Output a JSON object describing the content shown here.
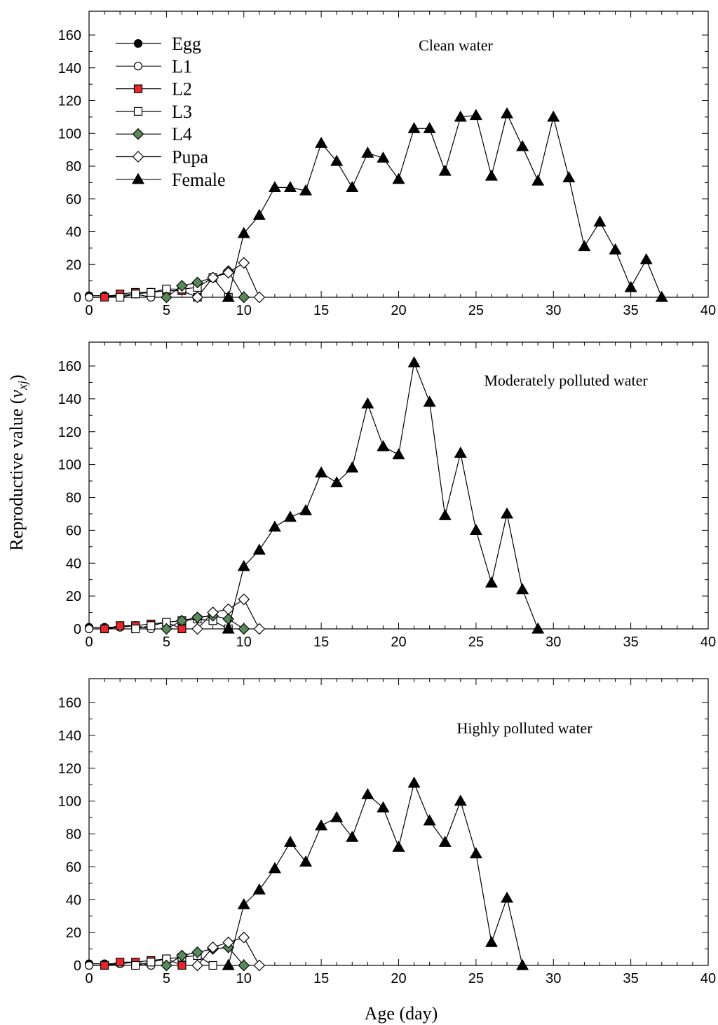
{
  "figure": {
    "ylabel_main": "Reproductive value (",
    "ylabel_var": "v",
    "ylabel_sub": "xj",
    "ylabel_close": ")",
    "xlabel": "Age (day)"
  },
  "series_styles": [
    {
      "name": "Egg",
      "marker": "circle",
      "fill": "#000000"
    },
    {
      "name": "L1",
      "marker": "circle",
      "fill": "#ffffff"
    },
    {
      "name": "L2",
      "marker": "square",
      "fill": "#e8262b"
    },
    {
      "name": "L3",
      "marker": "square",
      "fill": "#ffffff"
    },
    {
      "name": "L4",
      "marker": "diamond",
      "fill": "#5a8a5c"
    },
    {
      "name": "Pupa",
      "marker": "diamond",
      "fill": "#ffffff"
    },
    {
      "name": "Female",
      "marker": "triangle",
      "fill": "#000000"
    }
  ],
  "chart_data": [
    {
      "type": "line",
      "title": "Clean water",
      "xlim": [
        0,
        40
      ],
      "ylim": [
        0,
        160
      ],
      "xticks": [
        0,
        5,
        10,
        15,
        20,
        25,
        30,
        35,
        40
      ],
      "yticks": [
        0,
        20,
        40,
        60,
        80,
        100,
        120,
        140,
        160
      ],
      "legend": "top-left",
      "series": [
        {
          "name": "Egg",
          "x": [
            0,
            1,
            2,
            3
          ],
          "y": [
            1,
            1,
            1,
            2
          ]
        },
        {
          "name": "L1",
          "x": [
            0,
            1,
            2,
            3,
            4
          ],
          "y": [
            0,
            0,
            1,
            2,
            0
          ]
        },
        {
          "name": "L2",
          "x": [
            1,
            2,
            3,
            4,
            5,
            6,
            7
          ],
          "y": [
            0,
            2,
            3,
            3,
            4,
            4,
            0
          ]
        },
        {
          "name": "L3",
          "x": [
            2,
            3,
            4,
            5,
            6,
            7,
            8,
            9
          ],
          "y": [
            0,
            2,
            3,
            5,
            5,
            6,
            12,
            0
          ]
        },
        {
          "name": "L4",
          "x": [
            5,
            6,
            7,
            8,
            9,
            10
          ],
          "y": [
            0,
            7,
            9,
            12,
            16,
            0
          ]
        },
        {
          "name": "Pupa",
          "x": [
            7,
            8,
            9,
            10,
            11
          ],
          "y": [
            0,
            12,
            15,
            21,
            0
          ]
        },
        {
          "name": "Female",
          "x": [
            9,
            10,
            11,
            12,
            13,
            14,
            15,
            16,
            17,
            18,
            19,
            20,
            21,
            22,
            23,
            24,
            25,
            26,
            27,
            28,
            29,
            30,
            31,
            32,
            33,
            34,
            35,
            36,
            37
          ],
          "y": [
            0,
            39,
            50,
            67,
            67,
            65,
            94,
            83,
            67,
            88,
            85,
            72,
            103,
            103,
            77,
            110,
            111,
            74,
            112,
            92,
            71,
            110,
            73,
            31,
            46,
            29,
            6,
            23,
            0
          ]
        }
      ]
    },
    {
      "type": "line",
      "title": "Moderately polluted water",
      "xlim": [
        0,
        40
      ],
      "ylim": [
        0,
        160
      ],
      "xticks": [
        0,
        5,
        10,
        15,
        20,
        25,
        30,
        35,
        40
      ],
      "yticks": [
        0,
        20,
        40,
        60,
        80,
        100,
        120,
        140,
        160
      ],
      "series": [
        {
          "name": "Egg",
          "x": [
            0,
            1,
            2,
            3
          ],
          "y": [
            1,
            1,
            1,
            2
          ]
        },
        {
          "name": "L1",
          "x": [
            0,
            1,
            2,
            3,
            4
          ],
          "y": [
            0,
            0,
            1,
            2,
            0
          ]
        },
        {
          "name": "L2",
          "x": [
            1,
            2,
            3,
            4,
            5,
            6
          ],
          "y": [
            0,
            2,
            2,
            3,
            4,
            0
          ]
        },
        {
          "name": "L3",
          "x": [
            3,
            4,
            5,
            6,
            7,
            8,
            9
          ],
          "y": [
            0,
            2,
            4,
            5,
            6,
            5,
            0
          ]
        },
        {
          "name": "L4",
          "x": [
            5,
            6,
            7,
            8,
            9,
            10
          ],
          "y": [
            0,
            5,
            7,
            8,
            6,
            0
          ]
        },
        {
          "name": "Pupa",
          "x": [
            7,
            8,
            9,
            10,
            11
          ],
          "y": [
            0,
            10,
            12,
            18,
            0
          ]
        },
        {
          "name": "Female",
          "x": [
            9,
            10,
            11,
            12,
            13,
            14,
            15,
            16,
            17,
            18,
            19,
            20,
            21,
            22,
            23,
            24,
            25,
            26,
            27,
            28,
            29
          ],
          "y": [
            0,
            38,
            48,
            62,
            68,
            72,
            95,
            89,
            98,
            137,
            111,
            106,
            162,
            138,
            69,
            107,
            60,
            28,
            70,
            24,
            0
          ]
        }
      ]
    },
    {
      "type": "line",
      "title": "Highly polluted water",
      "xlim": [
        0,
        40
      ],
      "ylim": [
        0,
        160
      ],
      "xticks": [
        0,
        5,
        10,
        15,
        20,
        25,
        30,
        35,
        40
      ],
      "yticks": [
        0,
        20,
        40,
        60,
        80,
        100,
        120,
        140,
        160
      ],
      "series": [
        {
          "name": "Egg",
          "x": [
            0,
            1,
            2,
            3
          ],
          "y": [
            1,
            1,
            1,
            2
          ]
        },
        {
          "name": "L1",
          "x": [
            0,
            1,
            2,
            3,
            4
          ],
          "y": [
            0,
            0,
            1,
            2,
            0
          ]
        },
        {
          "name": "L2",
          "x": [
            1,
            2,
            3,
            4,
            5,
            6
          ],
          "y": [
            0,
            2,
            2,
            3,
            4,
            0
          ]
        },
        {
          "name": "L3",
          "x": [
            3,
            4,
            5,
            6,
            7,
            8
          ],
          "y": [
            0,
            2,
            4,
            5,
            6,
            0
          ]
        },
        {
          "name": "L4",
          "x": [
            5,
            6,
            7,
            8,
            9,
            10
          ],
          "y": [
            0,
            6,
            8,
            10,
            11,
            0
          ]
        },
        {
          "name": "Pupa",
          "x": [
            7,
            8,
            9,
            10,
            11
          ],
          "y": [
            0,
            11,
            14,
            17,
            0
          ]
        },
        {
          "name": "Female",
          "x": [
            9,
            10,
            11,
            12,
            13,
            14,
            15,
            16,
            17,
            18,
            19,
            20,
            21,
            22,
            23,
            24,
            25,
            26,
            27,
            28
          ],
          "y": [
            0,
            37,
            46,
            59,
            75,
            63,
            85,
            90,
            78,
            104,
            96,
            72,
            111,
            88,
            75,
            100,
            68,
            14,
            41,
            0
          ]
        }
      ]
    }
  ]
}
